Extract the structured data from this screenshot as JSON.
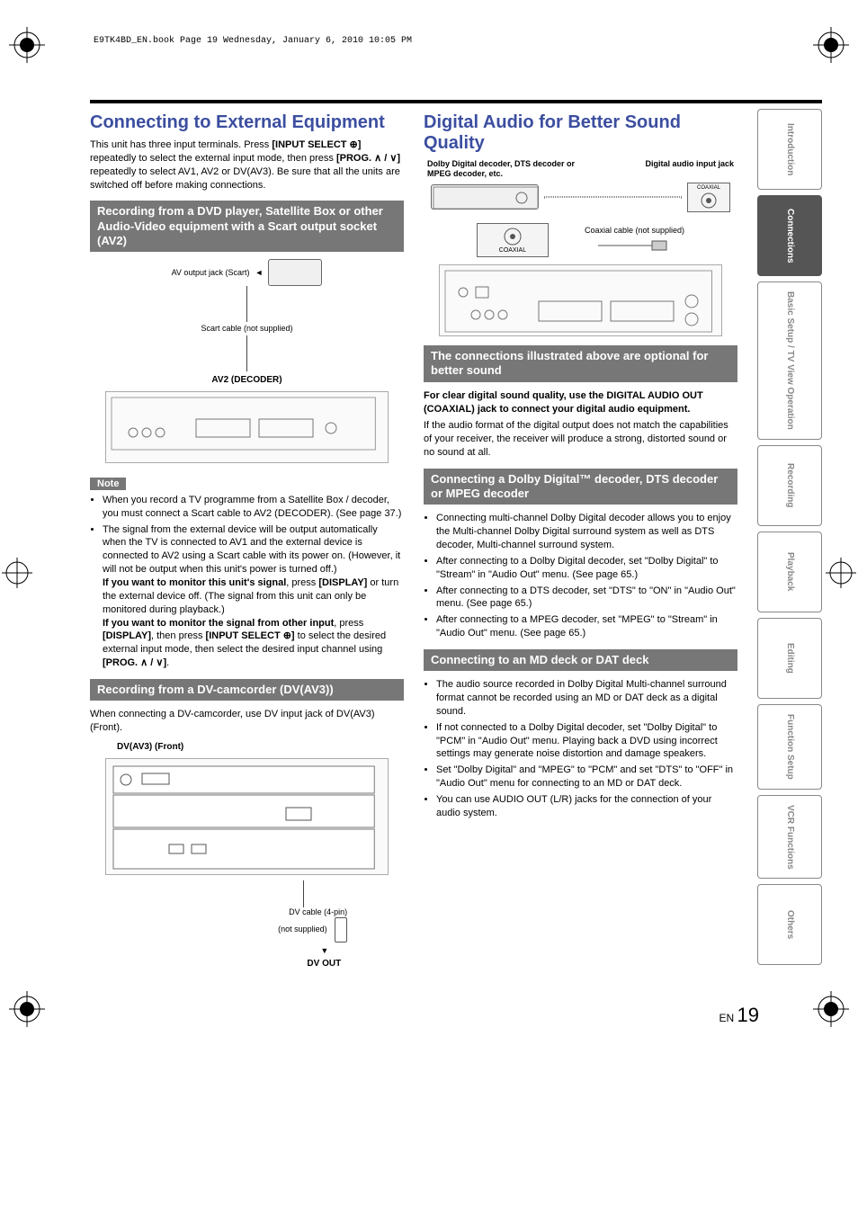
{
  "meta": {
    "header_line": "E9TK4BD_EN.book  Page 19  Wednesday, January 6, 2010  10:05 PM",
    "page_lang": "EN",
    "page_number": "19"
  },
  "sidebar": {
    "tabs": [
      {
        "label": "Introduction",
        "active": false
      },
      {
        "label": "Connections",
        "active": true
      },
      {
        "label": "Basic Setup / TV View Operation",
        "active": false
      },
      {
        "label": "Recording",
        "active": false
      },
      {
        "label": "Playback",
        "active": false
      },
      {
        "label": "Editing",
        "active": false
      },
      {
        "label": "Function Setup",
        "active": false
      },
      {
        "label": "VCR Functions",
        "active": false
      },
      {
        "label": "Others",
        "active": false
      }
    ]
  },
  "left": {
    "h1": "Connecting to External Equipment",
    "intro": "This unit has three input terminals. Press",
    "intro2_pre": "[INPUT SELECT ⊕]",
    "intro2_post": " repeatedly to select the external input mode, then press ",
    "intro2_prog": "[PROG. ∧ / ∨]",
    "intro2_tail": " repeatedly to select AV1, AV2 or DV(AV3). Be sure that all the units are switched off before making connections.",
    "sec1_bar": "Recording from a DVD player, Satellite Box or other Audio-Video equipment with a Scart output socket (AV2)",
    "fig1": {
      "av_jack": "AV output jack (Scart)",
      "scart_cable": "Scart cable (not supplied)",
      "av2_decoder": "AV2 (DECODER)"
    },
    "note_label": "Note",
    "note_items": [
      "When you record a TV programme from a Satellite Box / decoder, you must connect a Scart cable to AV2 (DECODER). (See page 37.)",
      "The signal from the external device will be output automatically when the TV is connected to AV1 and the external device is connected to AV2 using a Scart cable with its power on. (However, it will not be output when this unit's power is turned off.)"
    ],
    "note_monitor1_pre": "If you want to monitor this unit's signal",
    "note_monitor1_mid": ", press ",
    "note_monitor1_disp": "[DISPLAY]",
    "note_monitor1_post": " or turn the external device off. (The signal from this unit can only be monitored during playback.)",
    "note_monitor2_pre": "If you want to monitor the signal from other input",
    "note_monitor2_mid": ", press ",
    "note_monitor2_disp": "[DISPLAY]",
    "note_monitor2_mid2": ", then press ",
    "note_monitor2_input": "[INPUT SELECT ⊕]",
    "note_monitor2_mid3": " to select the desired external input mode, then select the desired input channel using ",
    "note_monitor2_prog": "[PROG. ∧ / ∨]",
    "note_monitor2_end": ".",
    "sec2_bar": "Recording from a DV-camcorder (DV(AV3))",
    "sec2_intro": "When connecting a DV-camcorder, use DV input jack of DV(AV3) (Front).",
    "fig2": {
      "front_label": "DV(AV3) (Front)",
      "dv_cable": "DV cable (4-pin)",
      "dv_not_supplied": "(not supplied)",
      "dv_out": "DV OUT"
    }
  },
  "right": {
    "h1": "Digital Audio for Better Sound Quality",
    "fig3": {
      "decoder_label": "Dolby Digital decoder, DTS decoder or MPEG decoder, etc.",
      "input_jack": "Digital audio input jack",
      "coaxial_top": "COAXIAL",
      "coaxial_cable": "Coaxial cable (not supplied)",
      "coaxial_mid": "COAXIAL"
    },
    "sec1_bar": "The connections illustrated above are optional for better sound",
    "sec1_bold": "For clear digital sound quality, use the DIGITAL AUDIO OUT (COAXIAL) jack to connect your digital audio equipment.",
    "sec1_p": "If the audio format of the digital output does not match the capabilities of your receiver, the receiver will produce a strong, distorted sound or no sound at all.",
    "sec2_bar": "Connecting a Dolby Digital™ decoder, DTS decoder or MPEG decoder",
    "sec2_items": [
      "Connecting multi-channel Dolby Digital decoder allows you to enjoy the Multi-channel Dolby Digital surround system as well as DTS decoder, Multi-channel surround system.",
      "After connecting to a Dolby Digital decoder, set \"Dolby Digital\" to \"Stream\" in \"Audio Out\" menu. (See page 65.)",
      "After connecting to a DTS decoder, set \"DTS\" to \"ON\" in \"Audio Out\" menu. (See page 65.)",
      "After connecting to a MPEG decoder, set \"MPEG\" to \"Stream\" in \"Audio Out\" menu. (See page 65.)"
    ],
    "sec3_bar": "Connecting to an MD deck or DAT deck",
    "sec3_items": [
      "The audio source recorded in Dolby Digital Multi-channel surround format cannot be recorded using an MD or DAT deck as a digital sound.",
      "If not connected to a Dolby Digital decoder, set \"Dolby Digital\" to \"PCM\" in \"Audio Out\" menu. Playing back a DVD using incorrect settings may generate noise distortion and damage speakers.",
      "Set \"Dolby Digital\" and \"MPEG\" to \"PCM\" and set \"DTS\" to \"OFF\" in \"Audio Out\" menu for connecting to an MD or DAT deck.",
      "You can use AUDIO OUT (L/R) jacks for the connection of your audio system."
    ]
  }
}
